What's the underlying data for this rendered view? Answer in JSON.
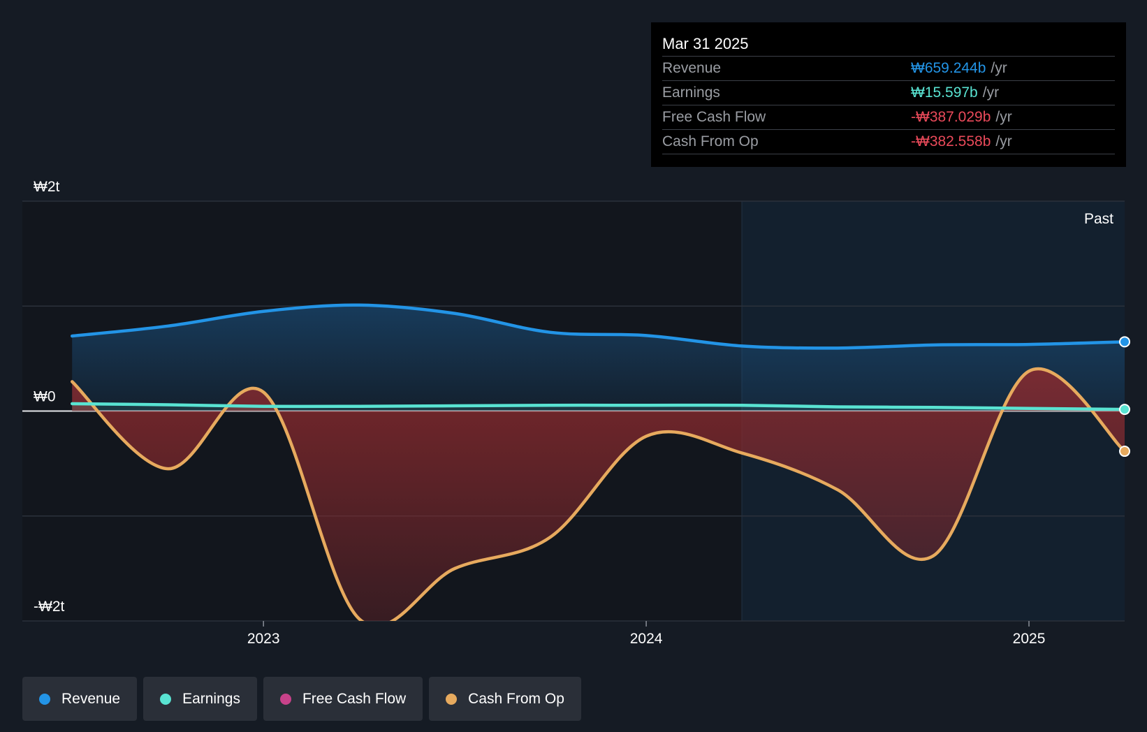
{
  "tooltip": {
    "date": "Mar 31 2025",
    "rows": [
      {
        "label": "Revenue",
        "value": "₩659.244b",
        "unit": "/yr",
        "color": "#2394e6"
      },
      {
        "label": "Earnings",
        "value": "₩15.597b",
        "unit": "/yr",
        "color": "#59e3d2"
      },
      {
        "label": "Free Cash Flow",
        "value": "-₩387.029b",
        "unit": "/yr",
        "color": "#ea4a5a"
      },
      {
        "label": "Cash From Op",
        "value": "-₩382.558b",
        "unit": "/yr",
        "color": "#ea4a5a"
      }
    ]
  },
  "legend": [
    {
      "label": "Revenue",
      "color": "#2394e6"
    },
    {
      "label": "Earnings",
      "color": "#59e3d2"
    },
    {
      "label": "Free Cash Flow",
      "color": "#c8428a"
    },
    {
      "label": "Cash From Op",
      "color": "#e7aa5e"
    }
  ],
  "chart_data": {
    "type": "area",
    "past_label": "Past",
    "y_tick_labels": [
      {
        "value": 2000,
        "label": "₩2t"
      },
      {
        "value": 0,
        "label": "₩0"
      },
      {
        "value": -2000,
        "label": "-₩2t"
      }
    ],
    "ylim": [
      -2000,
      2000
    ],
    "gridlines": [
      2000,
      1000,
      0,
      -1000,
      -2000
    ],
    "xlim": [
      2022.37,
      2025.25
    ],
    "x_ticks": [
      {
        "value": 2023.0,
        "label": "2023"
      },
      {
        "value": 2024.0,
        "label": "2024"
      },
      {
        "value": 2025.0,
        "label": "2025"
      }
    ],
    "past_region_start": 2024.25,
    "series": [
      {
        "name": "Revenue",
        "color": "#2394e6",
        "x": [
          2022.5,
          2022.75,
          2023.0,
          2023.25,
          2023.5,
          2023.75,
          2024.0,
          2024.25,
          2024.5,
          2024.75,
          2025.0,
          2025.25
        ],
        "y": [
          715,
          810,
          950,
          1010,
          930,
          750,
          720,
          620,
          600,
          630,
          635,
          660
        ]
      },
      {
        "name": "Earnings",
        "color": "#59e3d2",
        "x": [
          2022.5,
          2022.75,
          2023.0,
          2023.25,
          2023.5,
          2023.75,
          2024.0,
          2024.25,
          2024.5,
          2024.75,
          2025.0,
          2025.25
        ],
        "y": [
          70,
          60,
          45,
          45,
          50,
          55,
          55,
          55,
          40,
          35,
          25,
          16
        ]
      },
      {
        "name": "Cash From Op",
        "color": "#e7aa5e",
        "x": [
          2022.5,
          2022.75,
          2023.0,
          2023.25,
          2023.5,
          2023.75,
          2024.0,
          2024.25,
          2024.5,
          2024.75,
          2025.0,
          2025.25
        ],
        "y": [
          280,
          -550,
          180,
          -1980,
          -1500,
          -1200,
          -240,
          -400,
          -750,
          -1380,
          380,
          -383
        ]
      },
      {
        "name": "Free Cash Flow",
        "color": "#c8428a",
        "x": [
          2022.5,
          2022.75,
          2023.0,
          2023.25,
          2023.5,
          2023.75,
          2024.0,
          2024.25,
          2024.5,
          2024.75,
          2025.0,
          2025.25
        ],
        "y": [
          280,
          -550,
          180,
          -1980,
          -1500,
          -1200,
          -240,
          -400,
          -750,
          -1380,
          380,
          -387
        ]
      }
    ]
  }
}
